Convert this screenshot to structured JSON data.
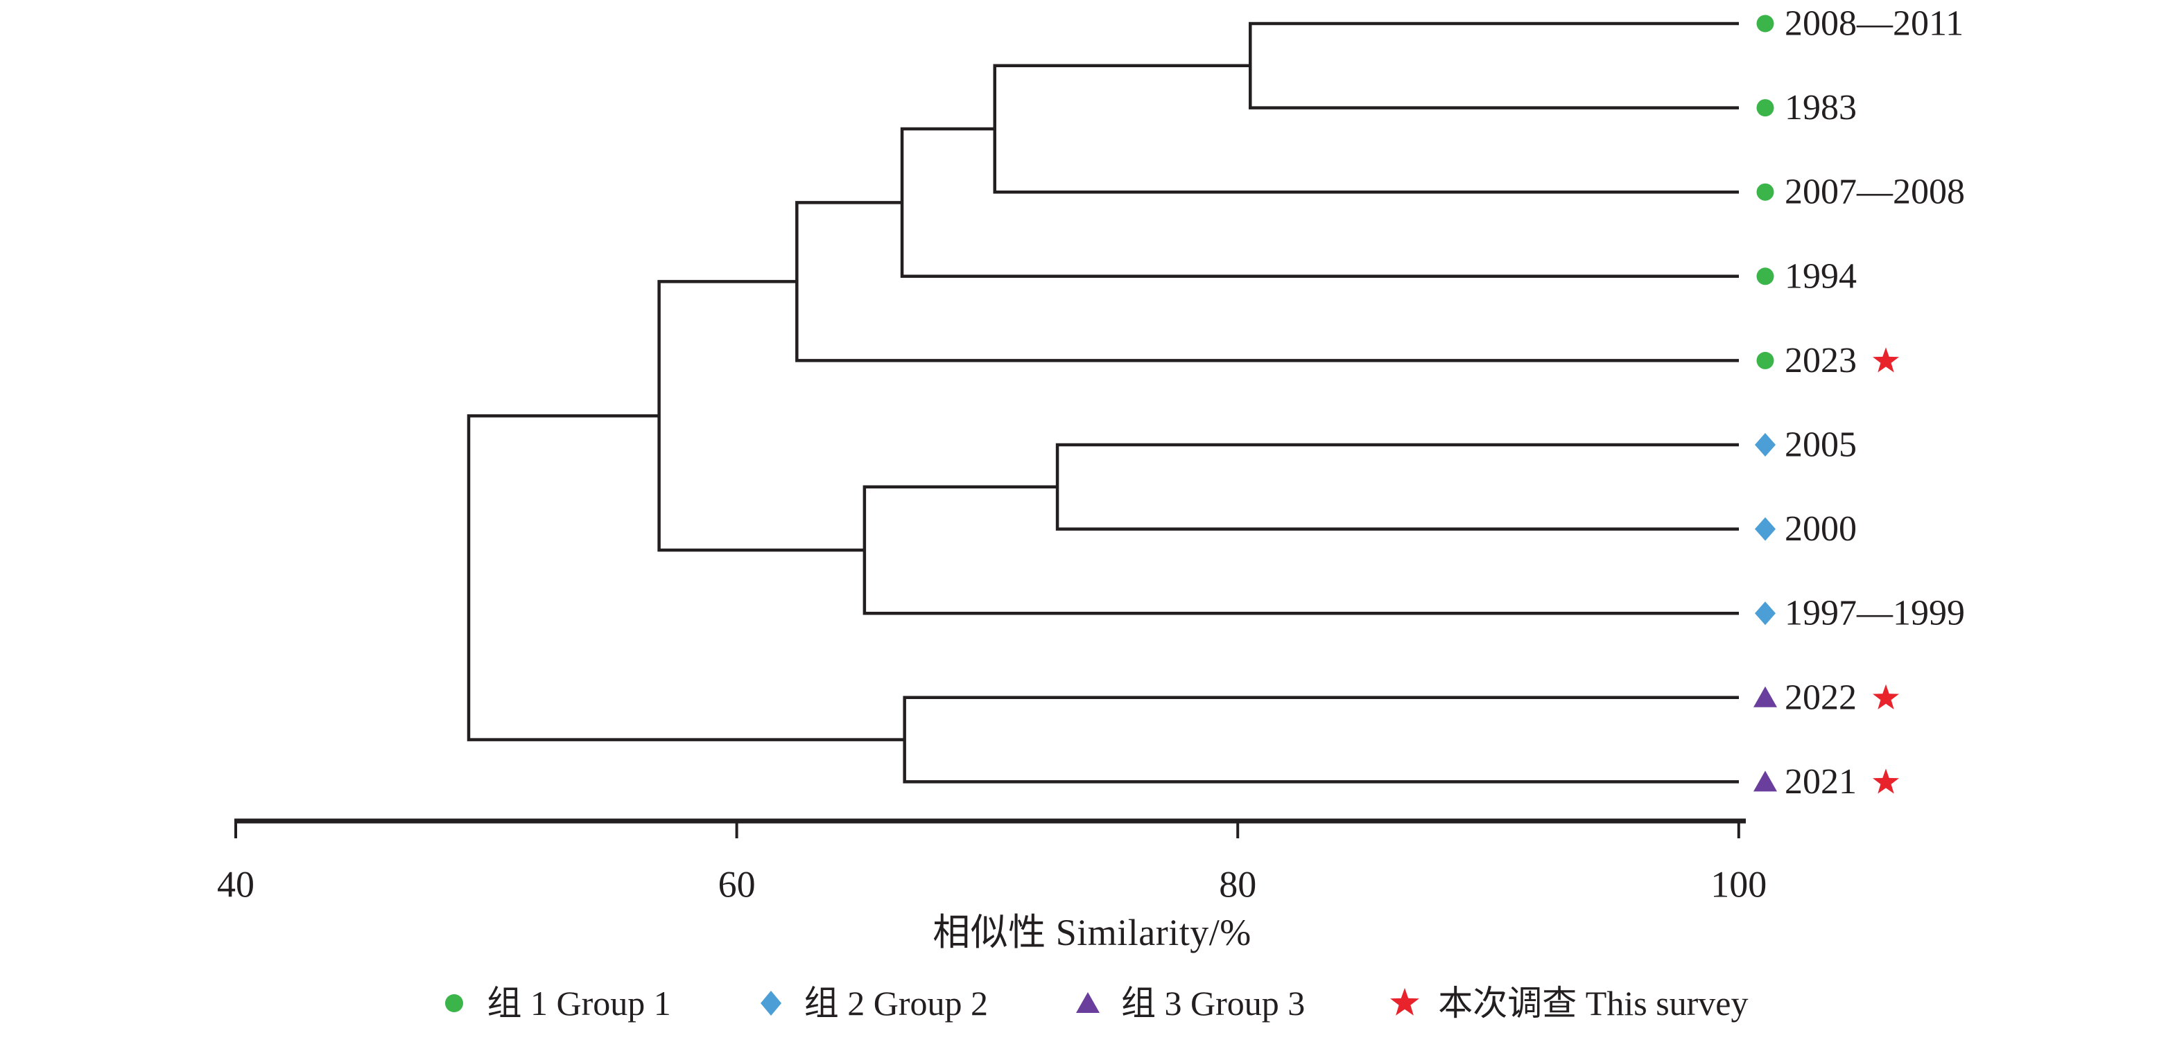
{
  "chart_data": {
    "type": "dendrogram",
    "xlabel": "相似性 Similarity/%",
    "axis": {
      "ticks": [
        40,
        60,
        80,
        100
      ],
      "range": [
        40,
        100
      ],
      "grid": false
    },
    "leaves": [
      {
        "label": "2008—2011",
        "group": "1",
        "survey": false
      },
      {
        "label": "1983",
        "group": "1",
        "survey": false
      },
      {
        "label": "2007—2008",
        "group": "1",
        "survey": false
      },
      {
        "label": "1994",
        "group": "1",
        "survey": false
      },
      {
        "label": "2023",
        "group": "1",
        "survey": true
      },
      {
        "label": "2005",
        "group": "2",
        "survey": false
      },
      {
        "label": "2000",
        "group": "2",
        "survey": false
      },
      {
        "label": "1997—1999",
        "group": "2",
        "survey": false
      },
      {
        "label": "2022",
        "group": "3",
        "survey": true
      },
      {
        "label": "2021",
        "group": "3",
        "survey": true
      }
    ],
    "tree": {
      "sim": 49.3,
      "children": [
        {
          "sim": 56.9,
          "children": [
            {
              "sim": 62.4,
              "children": [
                {
                  "sim": 66.6,
                  "children": [
                    {
                      "sim": 70.3,
                      "children": [
                        {
                          "sim": 80.5,
                          "children": [
                            {
                              "leaf": 0
                            },
                            {
                              "leaf": 1
                            }
                          ]
                        },
                        {
                          "leaf": 2
                        }
                      ]
                    },
                    {
                      "leaf": 3
                    }
                  ]
                },
                {
                  "leaf": 4
                }
              ]
            },
            {
              "sim": 65.1,
              "children": [
                {
                  "sim": 72.8,
                  "children": [
                    {
                      "leaf": 5
                    },
                    {
                      "leaf": 6
                    }
                  ]
                },
                {
                  "leaf": 7
                }
              ]
            }
          ]
        },
        {
          "sim": 66.7,
          "children": [
            {
              "leaf": 8
            },
            {
              "leaf": 9
            }
          ]
        }
      ]
    },
    "groups": {
      "1": {
        "marker": "circle",
        "color": "#3bb44a"
      },
      "2": {
        "marker": "diamond",
        "color": "#4b9fd6"
      },
      "3": {
        "marker": "triangle",
        "color": "#6a3e9c"
      }
    },
    "survey_marker": {
      "marker": "star",
      "color": "#e8232b"
    },
    "legend": [
      {
        "label": "组 1 Group 1",
        "marker": "circle",
        "color": "#3bb44a"
      },
      {
        "label": "组 2 Group 2",
        "marker": "diamond",
        "color": "#4b9fd6"
      },
      {
        "label": "组 3 Group 3",
        "marker": "triangle",
        "color": "#6a3e9c"
      },
      {
        "label": "本次调查 This survey",
        "marker": "star",
        "color": "#e8232b"
      }
    ],
    "line_color": "#231f20",
    "text_color": "#231f20"
  }
}
